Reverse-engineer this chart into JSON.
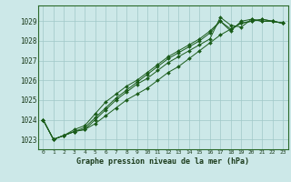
{
  "title": "Graphe pression niveau de la mer (hPa)",
  "background_color": "#cce8e8",
  "line_color": "#1a5c1a",
  "grid_color": "#a0c8c8",
  "xlim": [
    -0.5,
    23.5
  ],
  "ylim": [
    1022.5,
    1029.8
  ],
  "yticks": [
    1023,
    1024,
    1025,
    1026,
    1027,
    1028,
    1029
  ],
  "xticks": [
    0,
    1,
    2,
    3,
    4,
    5,
    6,
    7,
    8,
    9,
    10,
    11,
    12,
    13,
    14,
    15,
    16,
    17,
    18,
    19,
    20,
    21,
    22,
    23
  ],
  "series": [
    [
      1024.0,
      1023.0,
      1023.2,
      1023.4,
      1023.5,
      1024.0,
      1024.5,
      1025.0,
      1025.4,
      1025.8,
      1026.1,
      1026.5,
      1026.9,
      1027.2,
      1027.5,
      1027.8,
      1028.1,
      1029.2,
      1028.8,
      1028.7,
      1029.1,
      1029.0,
      1029.0,
      1028.9
    ],
    [
      1024.0,
      1023.0,
      1023.2,
      1023.4,
      1023.6,
      1024.1,
      1024.6,
      1025.1,
      1025.5,
      1025.9,
      1026.3,
      1026.7,
      1027.1,
      1027.4,
      1027.7,
      1028.0,
      1028.4,
      1029.0,
      1028.6,
      1028.9,
      1029.0,
      1029.1,
      1029.0,
      1028.9
    ],
    [
      1024.0,
      1023.0,
      1023.2,
      1023.5,
      1023.7,
      1024.3,
      1024.9,
      1025.3,
      1025.7,
      1026.0,
      1026.4,
      1026.8,
      1027.2,
      1027.5,
      1027.8,
      1028.1,
      1028.5,
      1029.0,
      1028.5,
      1029.0,
      1029.1,
      1029.0,
      1029.0,
      1028.9
    ],
    [
      1024.0,
      1023.0,
      1023.2,
      1023.4,
      1023.5,
      1023.8,
      1024.2,
      1024.6,
      1025.0,
      1025.3,
      1025.6,
      1026.0,
      1026.4,
      1026.7,
      1027.1,
      1027.5,
      1027.9,
      1028.3,
      1028.6,
      1028.9,
      1029.0,
      1029.1,
      1029.0,
      1028.9
    ]
  ]
}
